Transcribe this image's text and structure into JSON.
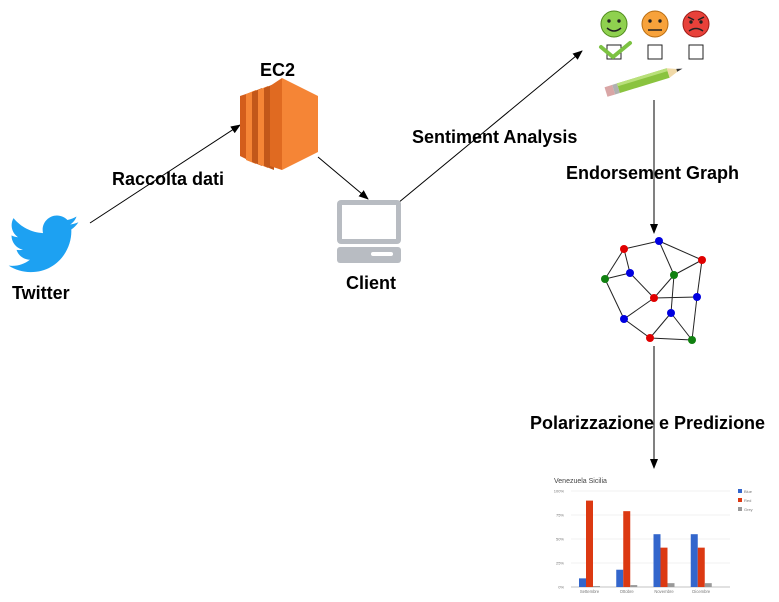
{
  "labels": {
    "twitter": "Twitter",
    "raccolta": "Raccolta dati",
    "ec2": "EC2",
    "client": "Client",
    "sentiment": "Sentiment Analysis",
    "endorsement": "Endorsement Graph",
    "polarizzazione": "Polarizzazione e Predizione"
  },
  "icons": {
    "twitter": "twitter-bird-icon",
    "ec2": "aws-ec2-icon",
    "client": "computer-client-icon",
    "sentiment": [
      "happy-face-icon",
      "neutral-face-icon",
      "angry-face-icon"
    ],
    "pencil": "pencil-icon",
    "graph": "network-graph-icon",
    "chart": "bar-chart-thumbnail"
  },
  "colors": {
    "twitter": "#1da1f2",
    "ec2": "#f58536",
    "client": "#b8bcc2",
    "graph_red": "#e00000",
    "graph_blue": "#0000e0",
    "graph_green": "#108010"
  },
  "chart_data": {
    "type": "bar",
    "title": "Venezuela Sicilia",
    "categories": [
      "Settembre",
      "Ottobre",
      "Novembre",
      "Dicembre"
    ],
    "ylim": [
      0,
      100
    ],
    "yticks": [
      "0%",
      "25%",
      "50%",
      "75%",
      "100%"
    ],
    "series": [
      {
        "name": "Blue",
        "color": "#3366cc",
        "values": [
          9,
          18,
          55,
          55
        ]
      },
      {
        "name": "Red",
        "color": "#dc3912",
        "values": [
          90,
          79,
          41,
          41
        ]
      },
      {
        "name": "Grey",
        "color": "#999999",
        "values": [
          1,
          2,
          4,
          4
        ]
      }
    ],
    "legend": "top-right"
  }
}
